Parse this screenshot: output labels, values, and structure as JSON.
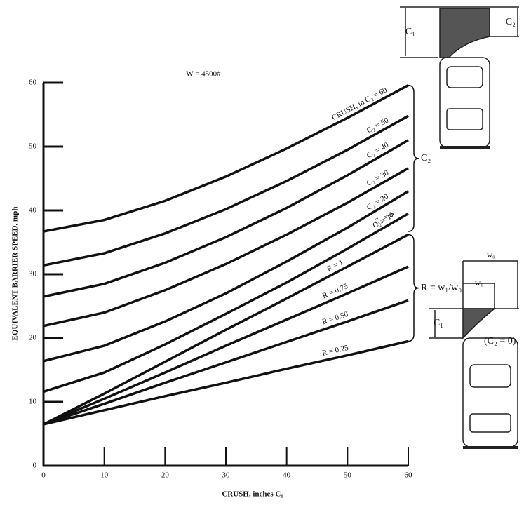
{
  "chart_data": {
    "type": "line",
    "title": "W = 4500#",
    "x_label": "CRUSH, inches C₁",
    "y_label": "EQUIVALENT BARRIER SPEED, mph",
    "x": [
      0,
      10,
      20,
      30,
      40,
      50,
      60
    ],
    "xlim": [
      0,
      60
    ],
    "ylim": [
      0,
      60
    ],
    "xticks": [
      0,
      10,
      20,
      30,
      40,
      50,
      60
    ],
    "yticks": [
      0,
      10,
      20,
      30,
      40,
      50,
      60
    ],
    "color": "#111111",
    "series": [
      {
        "name": "CRUSH, in C₂ = 60",
        "color": "#111111",
        "values": [
          36.7,
          38.5,
          41.5,
          45.3,
          49.7,
          54.5,
          59.6
        ]
      },
      {
        "name": "C₂ = 50",
        "color": "#111111",
        "values": [
          31.4,
          33.3,
          36.4,
          40.2,
          44.6,
          49.5,
          54.8
        ]
      },
      {
        "name": "C₂ = 40",
        "color": "#111111",
        "values": [
          26.5,
          28.5,
          31.8,
          35.8,
          40.4,
          45.5,
          51.0
        ]
      },
      {
        "name": "C₂ = 30",
        "color": "#111111",
        "values": [
          21.9,
          24.0,
          27.5,
          31.6,
          36.2,
          41.2,
          46.6
        ]
      },
      {
        "name": "C₂ = 20",
        "color": "#111111",
        "values": [
          16.4,
          18.8,
          22.6,
          27.0,
          32.0,
          37.3,
          43.0
        ]
      },
      {
        "name": "C₂ = 10",
        "color": "#111111",
        "values": [
          11.6,
          14.6,
          19.0,
          23.8,
          28.7,
          34.0,
          39.5
        ]
      },
      {
        "name": "R = 1",
        "color": "#111111",
        "values": [
          6.5,
          11.3,
          16.3,
          21.3,
          26.2,
          31.2,
          36.2
        ]
      },
      {
        "name": "R = 0.75",
        "color": "#111111",
        "values": [
          6.5,
          10.5,
          14.6,
          18.8,
          22.9,
          27.0,
          31.2
        ]
      },
      {
        "name": "R = 0.50",
        "color": "#111111",
        "values": [
          6.5,
          9.7,
          13.0,
          16.2,
          19.4,
          22.6,
          25.9
        ]
      },
      {
        "name": "R = 0.25",
        "color": "#111111",
        "values": [
          6.5,
          8.7,
          10.9,
          13.0,
          15.2,
          17.3,
          19.5
        ]
      }
    ],
    "annotations": [
      "C₂ = 0",
      "C₂",
      "R = w₁/w₀",
      "(C₂ = 0)",
      "C₁",
      "C₂",
      "C₁",
      "w₀",
      "w₁"
    ]
  }
}
